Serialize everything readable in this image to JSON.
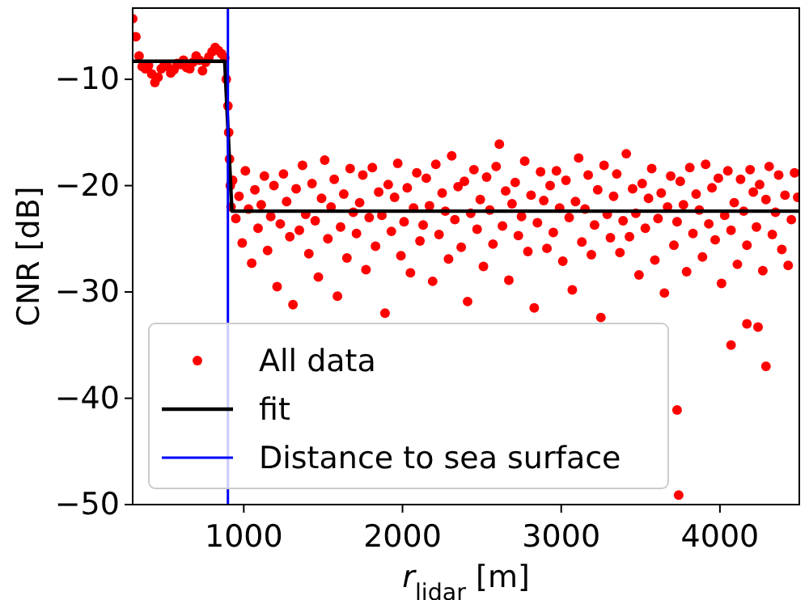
{
  "chart_data": {
    "type": "scatter",
    "xlabel": "r$_{lidar}$ [m]",
    "ylabel": "CNR [dB]",
    "xlim": [
      300,
      4500
    ],
    "ylim": [
      -50,
      -3.3
    ],
    "xticks": [
      1000,
      2000,
      3000,
      4000
    ],
    "yticks": [
      {
        "value": -50,
        "label": "−50"
      },
      {
        "value": -40,
        "label": "−40"
      },
      {
        "value": -30,
        "label": "−30"
      },
      {
        "value": -20,
        "label": "−20"
      },
      {
        "value": -10,
        "label": "−10"
      }
    ],
    "grid": false,
    "legend": "bottom left",
    "ref_lines": [
      {
        "axis": "x",
        "value": 900,
        "label": "Distance to sea surface",
        "color": "#0000ff"
      }
    ],
    "series": [
      {
        "name": "All data",
        "marker": "circle",
        "color": "#ff0000",
        "x": [
          300,
          320,
          340,
          360,
          380,
          400,
          420,
          440,
          460,
          480,
          500,
          520,
          540,
          560,
          580,
          600,
          620,
          640,
          660,
          680,
          700,
          720,
          740,
          760,
          780,
          800,
          820,
          840,
          860,
          880,
          890,
          900,
          905,
          910,
          915,
          920,
          930,
          950,
          970,
          990,
          1010,
          1030,
          1050,
          1070,
          1090,
          1110,
          1130,
          1150,
          1170,
          1190,
          1210,
          1230,
          1250,
          1270,
          1290,
          1310,
          1330,
          1350,
          1370,
          1390,
          1410,
          1430,
          1450,
          1470,
          1490,
          1510,
          1530,
          1550,
          1570,
          1590,
          1610,
          1630,
          1650,
          1670,
          1690,
          1710,
          1730,
          1750,
          1770,
          1790,
          1810,
          1830,
          1850,
          1870,
          1890,
          1910,
          1930,
          1950,
          1970,
          1990,
          2010,
          2030,
          2050,
          2070,
          2090,
          2110,
          2130,
          2150,
          2170,
          2190,
          2210,
          2230,
          2250,
          2270,
          2290,
          2310,
          2330,
          2350,
          2370,
          2390,
          2410,
          2430,
          2450,
          2470,
          2490,
          2510,
          2530,
          2550,
          2570,
          2590,
          2610,
          2630,
          2650,
          2670,
          2690,
          2710,
          2730,
          2750,
          2770,
          2790,
          2810,
          2830,
          2850,
          2870,
          2890,
          2910,
          2930,
          2950,
          2970,
          2990,
          3010,
          3030,
          3050,
          3070,
          3090,
          3110,
          3130,
          3150,
          3170,
          3190,
          3210,
          3230,
          3250,
          3270,
          3290,
          3310,
          3330,
          3350,
          3370,
          3390,
          3410,
          3430,
          3450,
          3470,
          3490,
          3510,
          3530,
          3550,
          3570,
          3590,
          3610,
          3630,
          3650,
          3670,
          3690,
          3710,
          3730,
          3750,
          3770,
          3790,
          3810,
          3830,
          3850,
          3870,
          3890,
          3910,
          3930,
          3950,
          3970,
          3990,
          4010,
          4030,
          4050,
          4070,
          4090,
          4110,
          4130,
          4150,
          4170,
          4190,
          4210,
          4230,
          4250,
          4270,
          4290,
          4310,
          4330,
          4350,
          4370,
          4390,
          4410,
          4430,
          4450,
          4470,
          4490,
          3730,
          3740,
          4070,
          4170,
          4240,
          4290
        ],
        "values": [
          -4.3,
          -6,
          -7.8,
          -8.8,
          -9,
          -8.7,
          -9.5,
          -10.3,
          -9.8,
          -9,
          -8.6,
          -8.8,
          -9.4,
          -9.1,
          -8.5,
          -8.6,
          -8.2,
          -8.9,
          -9,
          -8.4,
          -7.8,
          -8.2,
          -9.2,
          -8.4,
          -7.9,
          -7.4,
          -7,
          -7.3,
          -7.6,
          -8,
          -10,
          -12.5,
          -15,
          -17.5,
          -20,
          -22,
          -19.5,
          -23.1,
          -21,
          -25.4,
          -18.6,
          -22.2,
          -27.3,
          -20.4,
          -24,
          -21.8,
          -19.1,
          -26.1,
          -22.9,
          -20,
          -29.5,
          -23.6,
          -18.9,
          -21.5,
          -24.8,
          -31.2,
          -20.3,
          -24.2,
          -18.1,
          -22.7,
          -26.4,
          -19.8,
          -23.3,
          -28.6,
          -21.2,
          -17.6,
          -25,
          -22,
          -19.4,
          -30.4,
          -23.9,
          -20.8,
          -26.8,
          -18.4,
          -22.5,
          -24.5,
          -21.6,
          -19,
          -27.9,
          -23,
          -18.3,
          -25.7,
          -20.6,
          -22.8,
          -32,
          -19.9,
          -24.3,
          -21.1,
          -17.9,
          -26.6,
          -23.4,
          -20.2,
          -28.2,
          -22.1,
          -18.8,
          -25.2,
          -23.7,
          -19.3,
          -21.9,
          -29,
          -18,
          -24.6,
          -20.7,
          -22.4,
          -26.9,
          -17.2,
          -23.2,
          -20.1,
          -25.8,
          -19.6,
          -30.9,
          -22.6,
          -18.5,
          -24.1,
          -21.3,
          -27.6,
          -19.2,
          -22.3,
          -25.5,
          -18.2,
          -16.1,
          -23.8,
          -20.5,
          -28.9,
          -21.7,
          -19.7,
          -24.7,
          -22.9,
          -17.7,
          -26.2,
          -20.9,
          -31.5,
          -23.5,
          -18.7,
          -21.4,
          -25.9,
          -20,
          -24.4,
          -18.6,
          -22.1,
          -27.1,
          -19.5,
          -23,
          -29.8,
          -21.5,
          -17.4,
          -25.3,
          -22.2,
          -19,
          -26.5,
          -23.7,
          -20.4,
          -32.4,
          -18.1,
          -22.7,
          -24.9,
          -21,
          -18.9,
          -26.3,
          -23.3,
          -17,
          -24.8,
          -20.3,
          -22.6,
          -28.4,
          -19.8,
          -24,
          -21.2,
          -18.4,
          -27,
          -23.1,
          -20.7,
          -30.1,
          -22,
          -19.1,
          -25.6,
          -23.4,
          -19.6,
          -21.8,
          -28.1,
          -18.3,
          -24.5,
          -20.8,
          -22.3,
          -26.7,
          -18,
          -23.6,
          -20.2,
          -25.1,
          -19.3,
          -29.2,
          -22.8,
          -18.6,
          -24.2,
          -21.6,
          -27.4,
          -19.4,
          -22.4,
          -25.6,
          -18.5,
          -20.6,
          -23.9,
          -19.9,
          -28,
          -21.3,
          -18.2,
          -24.6,
          -22.5,
          -19,
          -26,
          -20.9,
          -27.5,
          -23.2,
          -18.8,
          -21.1,
          -41.1,
          -49.1,
          -35,
          -33,
          -33.3,
          -37
        ]
      },
      {
        "name": "fit",
        "type": "line",
        "marker": "none",
        "line_style": "solid",
        "color": "#000000",
        "x": [
          300,
          880,
          925,
          4500
        ],
        "values": [
          -8.3,
          -8.3,
          -22.4,
          -22.4
        ]
      }
    ]
  }
}
